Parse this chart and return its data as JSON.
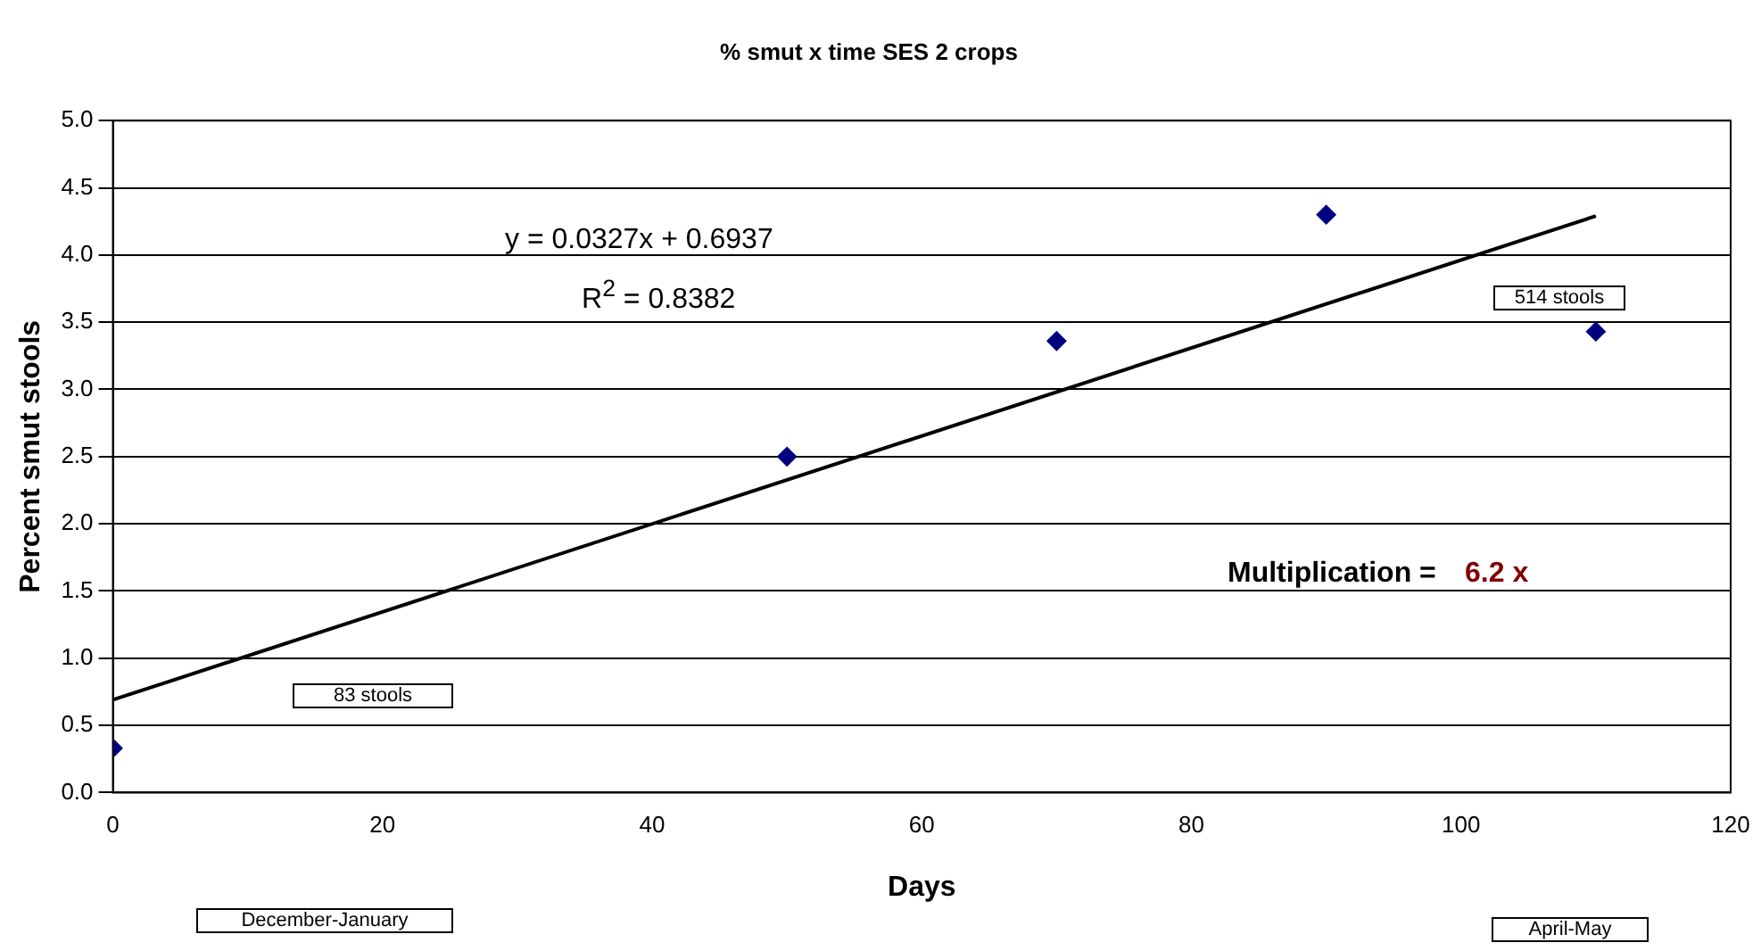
{
  "chart_data": {
    "type": "scatter",
    "title": "% smut x time SES 2 crops",
    "xlabel": "Days",
    "ylabel": "Percent smut stools",
    "x": [
      0,
      50,
      70,
      90,
      110
    ],
    "series": [
      {
        "type": "scatter",
        "color": "#000080",
        "marker": "diamond",
        "values": [
          0.33,
          2.5,
          3.36,
          4.3,
          3.43
        ]
      },
      {
        "type": "line",
        "color": "#000000",
        "marker": "none",
        "x": [
          0,
          110
        ],
        "values": [
          0.69,
          4.29
        ]
      }
    ],
    "xlim": [
      0,
      120
    ],
    "xticks": [
      0,
      20,
      40,
      60,
      80,
      100,
      120
    ],
    "ylim": [
      0,
      5
    ],
    "yticks": [
      {
        "value": 0,
        "label": "0.0"
      },
      {
        "value": 0.5,
        "label": "0.5"
      },
      {
        "value": 1,
        "label": "1.0"
      },
      {
        "value": 1.5,
        "label": "1.5"
      },
      {
        "value": 2,
        "label": "2.0"
      },
      {
        "value": 2.5,
        "label": "2.5"
      },
      {
        "value": 3,
        "label": "3.0"
      },
      {
        "value": 3.5,
        "label": "3.5"
      },
      {
        "value": 4,
        "label": "4.0"
      },
      {
        "value": 4.5,
        "label": "4.5"
      },
      {
        "value": 5,
        "label": "5.0"
      }
    ],
    "grid": "y",
    "legend": false,
    "annotations": [
      "y = 0.0327x + 0.6937",
      "R$^{2}$ = 0.8382",
      "514 stools",
      "83 stools",
      "Multiplication =",
      "6.2 x",
      "December-January",
      "April-May"
    ]
  }
}
